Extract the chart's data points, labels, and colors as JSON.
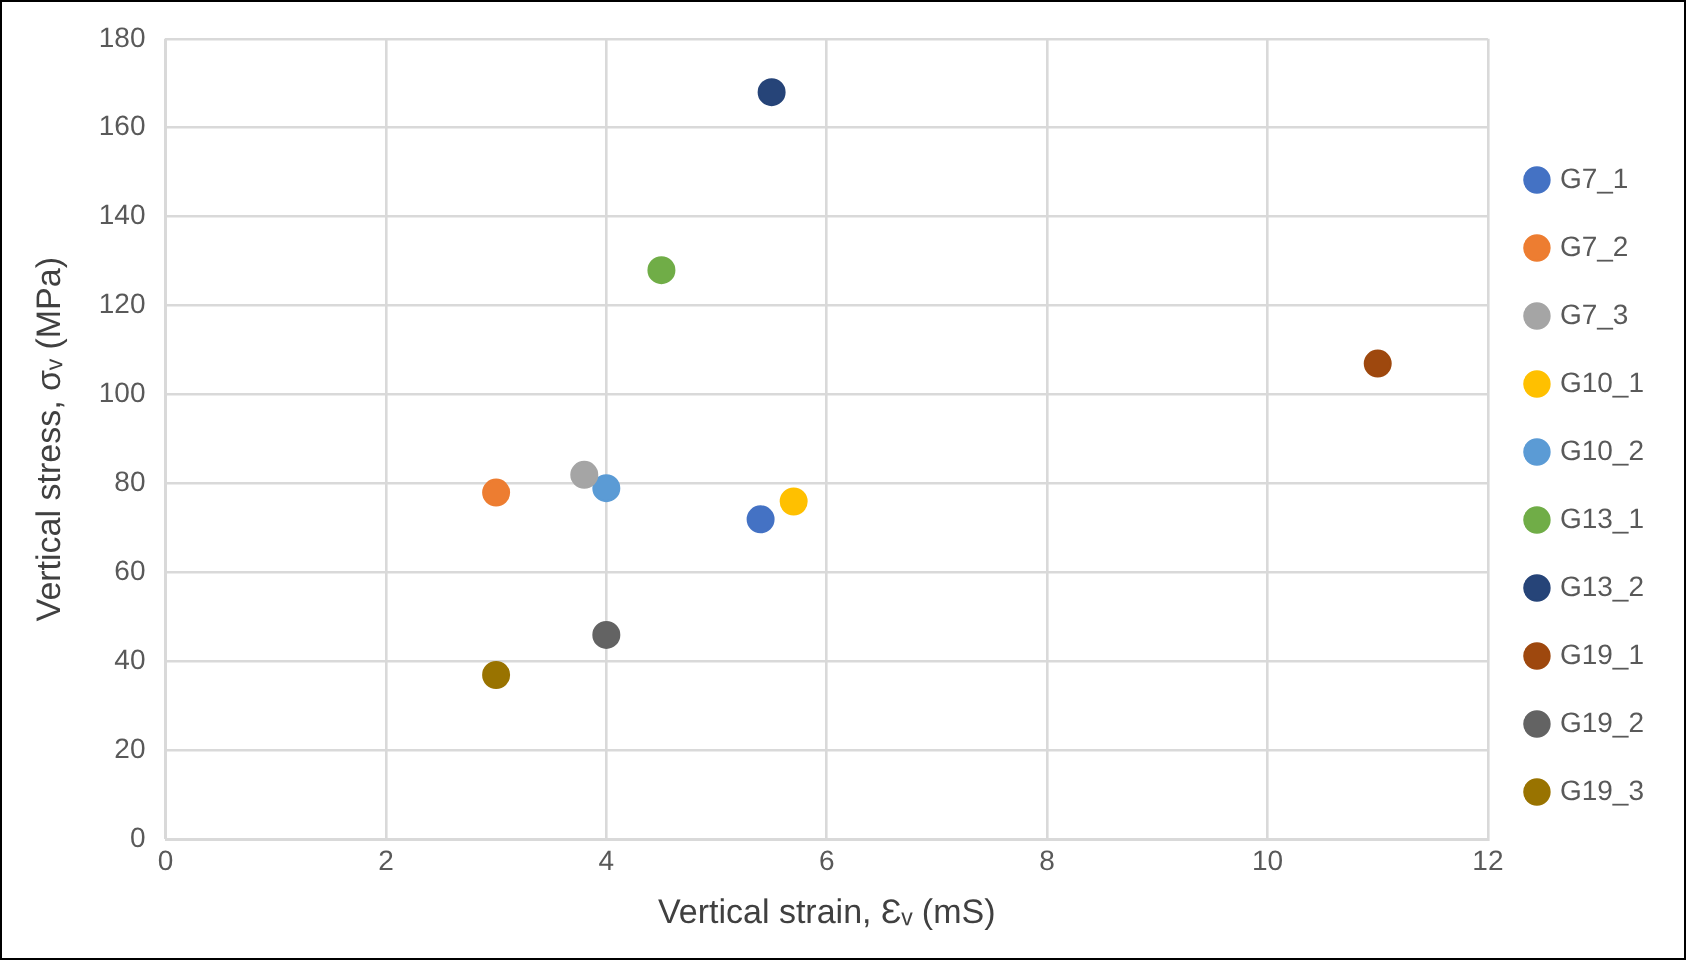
{
  "chart_data": {
    "type": "scatter",
    "xlabel": "Vertical strain, Ɛᵥ (mS)",
    "ylabel": "Vertical stress, σᵥ (MPa)",
    "xlim": [
      0,
      12
    ],
    "xticks": [
      0,
      2,
      4,
      6,
      8,
      10,
      12
    ],
    "ylim": [
      0,
      180
    ],
    "yticks": [
      0,
      20,
      40,
      60,
      80,
      100,
      120,
      140,
      160,
      180
    ],
    "grid": true,
    "legend": "right",
    "marker": "circle",
    "series": [
      {
        "name": "G7_1",
        "color": "#4472c4",
        "x": [
          5.4
        ],
        "values": [
          72
        ]
      },
      {
        "name": "G7_2",
        "color": "#ed7d31",
        "x": [
          3.0
        ],
        "values": [
          78
        ]
      },
      {
        "name": "G7_3",
        "color": "#a5a5a5",
        "x": [
          3.8
        ],
        "values": [
          82
        ]
      },
      {
        "name": "G10_1",
        "color": "#ffc000",
        "x": [
          5.7
        ],
        "values": [
          76
        ]
      },
      {
        "name": "G10_2",
        "color": "#5b9bd5",
        "x": [
          4.0
        ],
        "values": [
          79
        ]
      },
      {
        "name": "G13_1",
        "color": "#70ad47",
        "x": [
          4.5
        ],
        "values": [
          128
        ]
      },
      {
        "name": "G13_2",
        "color": "#264478",
        "x": [
          5.5
        ],
        "values": [
          168
        ]
      },
      {
        "name": "G19_1",
        "color": "#9e480e",
        "x": [
          11.0
        ],
        "values": [
          107
        ]
      },
      {
        "name": "G19_2",
        "color": "#636363",
        "x": [
          4.0
        ],
        "values": [
          46
        ]
      },
      {
        "name": "G19_3",
        "color": "#997300",
        "x": [
          3.0
        ],
        "values": [
          37
        ]
      }
    ]
  }
}
